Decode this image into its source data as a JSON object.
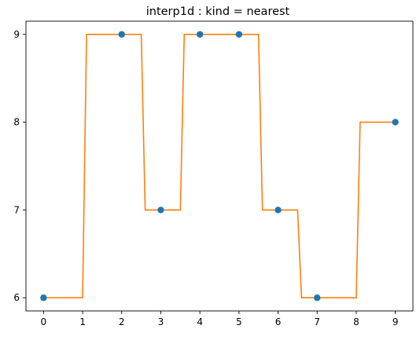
{
  "chart_data": {
    "type": "line",
    "title": "interp1d : kind = nearest",
    "xlabel": "",
    "ylabel": "",
    "xlim": [
      -0.45,
      9.45
    ],
    "ylim": [
      5.85,
      9.15
    ],
    "xticks": [
      "0",
      "1",
      "2",
      "3",
      "4",
      "5",
      "6",
      "7",
      "8",
      "9"
    ],
    "yticks": [
      "6",
      "7",
      "8",
      "9"
    ],
    "grid": false,
    "legend": "none",
    "series": [
      {
        "kind": "scatter",
        "color": "#1f77b4",
        "x": [
          0,
          2,
          3,
          4,
          5,
          6,
          7,
          9
        ],
        "y": [
          6,
          9,
          7,
          9,
          9,
          7,
          6,
          8
        ]
      },
      {
        "kind": "step-line",
        "color": "#ff7f0e",
        "x": [
          0,
          1,
          1.1,
          2.5,
          2.6,
          3.5,
          3.6,
          5.5,
          5.6,
          6.5,
          6.6,
          8.0,
          8.1,
          9.0
        ],
        "y": [
          6,
          6,
          9,
          9,
          7,
          7,
          9,
          9,
          7,
          7,
          6,
          6,
          8,
          8
        ]
      }
    ]
  }
}
